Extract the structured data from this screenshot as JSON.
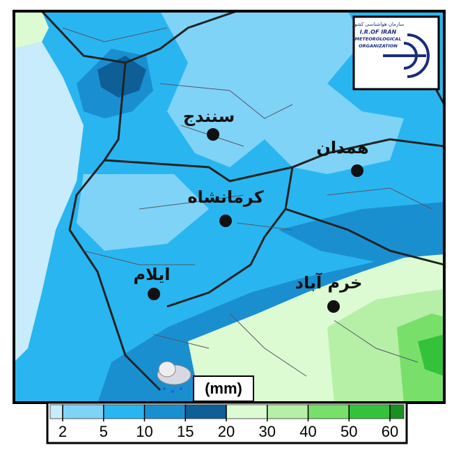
{
  "logo": {
    "name_fa": "سازمان هواشناسی کشور",
    "line1": "I.R.OF IRAN",
    "line2": "METEOROLOGICAL",
    "line3": "ORGANIZATION"
  },
  "cities": [
    {
      "label": "سنندج"
    },
    {
      "label": "همدان"
    },
    {
      "label": "کرمانشاه"
    },
    {
      "label": "ایلام"
    },
    {
      "label": "خرم آباد"
    }
  ],
  "unit": "(mm)",
  "legend": {
    "ticks": [
      2,
      5,
      10,
      15,
      20,
      30,
      40,
      50,
      60
    ],
    "colors": [
      "#c8ecfb",
      "#7fd3f7",
      "#29b6f0",
      "#1a8fd0",
      "#0d5f96",
      "#dcfbd2",
      "#b5f0a6",
      "#78e06a",
      "#34c23a",
      "#1b8f22"
    ]
  }
}
